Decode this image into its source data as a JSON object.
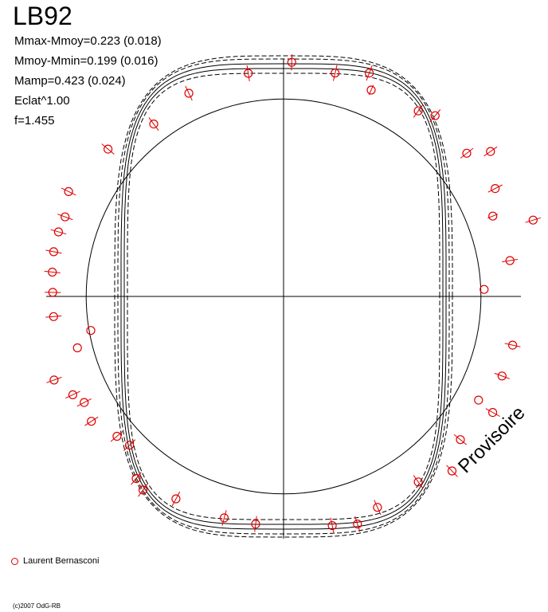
{
  "title": "LB92",
  "stats": [
    "Mmax-Mmoy=0.223 (0.018)",
    "Mmoy-Mmin=0.199 (0.016)",
    "Mamp=0.423 (0.024)",
    "Eclat^1.00",
    "f=1.455"
  ],
  "watermark": "Provisoire",
  "legend": [
    {
      "label": "Laurent Bernasconi",
      "color": "#e00000",
      "marker": "open-circle"
    }
  ],
  "copyright": "(c)2007 OdG-RB",
  "chart_data": {
    "type": "scatter",
    "coordinate_system": "polar",
    "title": "LB92",
    "reference_circle_radius": 1.0,
    "axes": "crosshair",
    "grid": false,
    "point_color": "#e00000",
    "curve_color": "#000000",
    "series": [
      {
        "name": "Laurent Bernasconi",
        "points": [
          {
            "angle": 88,
            "r": 1.4,
            "err": 0.03
          },
          {
            "angle": 99,
            "r": 1.35,
            "err": 0.03
          },
          {
            "angle": 115,
            "r": 1.34,
            "err": 0.03
          },
          {
            "angle": 77,
            "r": 1.37,
            "err": 0.03
          },
          {
            "angle": 69,
            "r": 1.43,
            "err": 0.03
          },
          {
            "angle": 67,
            "r": 1.34,
            "err": 0.02
          },
          {
            "angle": 54,
            "r": 1.37,
            "err": 0.03
          },
          {
            "angle": 50,
            "r": 1.41,
            "err": 0.03
          },
          {
            "angle": 38,
            "r": 1.39,
            "err": 0.03
          },
          {
            "angle": 35,
            "r": 1.51,
            "err": 0.03
          },
          {
            "angle": 27,
            "r": 1.42,
            "err": 0.03
          },
          {
            "angle": 21,
            "r": 1.34,
            "err": 0.02
          },
          {
            "angle": 17,
            "r": 1.56,
            "err": 0.03
          },
          {
            "angle": 9,
            "r": 1.37,
            "err": 0.03
          },
          {
            "angle": 2,
            "r": 1.2,
            "err": 0.0
          },
          {
            "angle": -12,
            "r": 1.4,
            "err": 0.03
          },
          {
            "angle": -20,
            "r": 1.39,
            "err": 0.03
          },
          {
            "angle": -29,
            "r": 1.43,
            "err": 0.03
          },
          {
            "angle": -28,
            "r": 1.32,
            "err": 0.0
          },
          {
            "angle": -39,
            "r": 1.36,
            "err": 0.03
          },
          {
            "angle": -46,
            "r": 1.45,
            "err": 0.03
          },
          {
            "angle": -54,
            "r": 1.37,
            "err": 0.03
          },
          {
            "angle": -66,
            "r": 1.38,
            "err": 0.03
          },
          {
            "angle": -72,
            "r": 1.43,
            "err": 0.03
          },
          {
            "angle": -78,
            "r": 1.4,
            "err": 0.03
          },
          {
            "angle": -97,
            "r": 1.37,
            "err": 0.03
          },
          {
            "angle": -105,
            "r": 1.37,
            "err": 0.03
          },
          {
            "angle": -118,
            "r": 1.37,
            "err": 0.03
          },
          {
            "angle": -126,
            "r": 1.43,
            "err": 0.03
          },
          {
            "angle": -129,
            "r": 1.4,
            "err": 0.03
          },
          {
            "angle": -136,
            "r": 1.28,
            "err": 0.03
          },
          {
            "angle": -140,
            "r": 1.3,
            "err": 0.03
          },
          {
            "angle": -147,
            "r": 1.37,
            "err": 0.03
          },
          {
            "angle": -152,
            "r": 1.35,
            "err": 0.03
          },
          {
            "angle": -155,
            "r": 1.39,
            "err": 0.03
          },
          {
            "angle": -160,
            "r": 1.46,
            "err": 0.03
          },
          {
            "angle": -166,
            "r": 1.27,
            "err": 0.0
          },
          {
            "angle": -170,
            "r": 1.17,
            "err": 0.0
          },
          {
            "angle": -175,
            "r": 1.38,
            "err": 0.03
          },
          {
            "angle": 179,
            "r": 1.38,
            "err": 0.03
          },
          {
            "angle": 174,
            "r": 1.39,
            "err": 0.03
          },
          {
            "angle": 169,
            "r": 1.4,
            "err": 0.03
          },
          {
            "angle": 164,
            "r": 1.4,
            "err": 0.03
          },
          {
            "angle": 160,
            "r": 1.39,
            "err": 0.03
          },
          {
            "angle": 154,
            "r": 1.43,
            "err": 0.03
          },
          {
            "angle": 140,
            "r": 1.37,
            "err": 0.03
          },
          {
            "angle": 127,
            "r": 1.29,
            "err": 0.03
          }
        ]
      }
    ]
  }
}
